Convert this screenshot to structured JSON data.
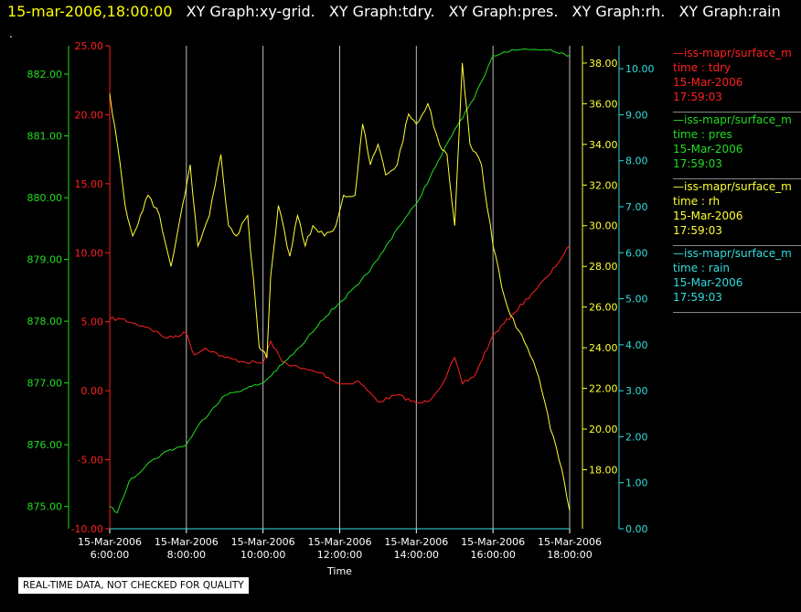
{
  "header": {
    "timestamp": "15-mar-2006,18:00:00",
    "graphs": [
      "XY Graph:xy-grid.",
      "XY Graph:tdry.",
      "XY Graph:pres.",
      "XY Graph:rh.",
      "XY Graph:rain"
    ]
  },
  "dot": ".",
  "disclaimer": "REAL-TIME DATA, NOT CHECKED FOR QUALITY",
  "colors": {
    "tdry": "#ff2020",
    "pres": "#22dd22",
    "rh": "#ffff33",
    "rain": "#33dddd",
    "grid": "#bbbbbb"
  },
  "chart_data": {
    "type": "line",
    "xlabel": "Time",
    "x_ticks": [
      {
        "date": "15-Mar-2006",
        "time": "6:00:00"
      },
      {
        "date": "15-Mar-2006",
        "time": "8:00:00"
      },
      {
        "date": "15-Mar-2006",
        "time": "10:00:00"
      },
      {
        "date": "15-Mar-2006",
        "time": "12:00:00"
      },
      {
        "date": "15-Mar-2006",
        "time": "14:00:00"
      },
      {
        "date": "15-Mar-2006",
        "time": "16:00:00"
      },
      {
        "date": "15-Mar-2006",
        "time": "18:00:00"
      }
    ],
    "xlim": [
      6,
      18
    ],
    "axes": {
      "tdry": {
        "ylim": [
          -10,
          25
        ],
        "ticks": [
          "-10.00",
          "-5.00",
          "0.00",
          "5.00",
          "10.00",
          "15.00",
          "20.00",
          "25.00"
        ]
      },
      "pres": {
        "ylim": [
          874.64,
          882.46
        ],
        "ticks": [
          "875.00",
          "876.00",
          "877.00",
          "878.00",
          "879.00",
          "880.00",
          "881.00",
          "882.00"
        ]
      },
      "rh": {
        "ylim": [
          15.1,
          38.85
        ],
        "ticks": [
          "18.00",
          "20.00",
          "22.00",
          "24.00",
          "26.00",
          "28.00",
          "30.00",
          "32.00",
          "34.00",
          "36.00",
          "38.00"
        ]
      },
      "rain": {
        "ylim": [
          0,
          10.5
        ],
        "ticks": [
          "0.00",
          "1.00",
          "2.00",
          "3.00",
          "4.00",
          "5.00",
          "6.00",
          "7.00",
          "8.00",
          "9.00",
          "10.00"
        ]
      }
    },
    "series": [
      {
        "key": "tdry",
        "x": [
          6,
          6.3,
          6.6,
          7,
          7.5,
          8,
          8.2,
          8.5,
          9,
          9.5,
          10,
          10.2,
          10.5,
          11,
          11.5,
          12,
          12.2,
          12.5,
          13,
          13.5,
          14,
          14.3,
          14.7,
          15,
          15.2,
          15.5,
          16,
          16.5,
          17,
          17.5,
          18
        ],
        "y": [
          5.2,
          5.2,
          4.9,
          4.6,
          3.8,
          4.2,
          2.6,
          3.1,
          2.4,
          2.1,
          2.0,
          3.6,
          2.1,
          1.6,
          1.3,
          0.5,
          0.5,
          0.7,
          -0.8,
          -0.3,
          -0.9,
          -0.8,
          0.6,
          2.4,
          0.5,
          1.0,
          4.0,
          5.5,
          7.0,
          8.5,
          10.5
        ]
      },
      {
        "key": "pres",
        "x": [
          6,
          6.2,
          6.5,
          7,
          7.5,
          8,
          8.3,
          8.7,
          9,
          9.5,
          10,
          10.5,
          11,
          11.5,
          12,
          12.5,
          13,
          13.5,
          14,
          14.5,
          15,
          15.5,
          15.8,
          16,
          16.5,
          17,
          17.5,
          18
        ],
        "y": [
          875.0,
          874.9,
          875.4,
          875.7,
          875.9,
          876.0,
          876.3,
          876.6,
          876.8,
          876.9,
          877.0,
          877.3,
          877.6,
          878.0,
          878.3,
          878.6,
          879.0,
          879.5,
          879.9,
          880.5,
          881.1,
          881.6,
          882.0,
          882.3,
          882.4,
          882.4,
          882.4,
          882.3
        ]
      },
      {
        "key": "rh",
        "x": [
          6,
          6.2,
          6.4,
          6.6,
          6.8,
          7,
          7.3,
          7.6,
          7.9,
          8.1,
          8.3,
          8.6,
          8.9,
          9.1,
          9.3,
          9.6,
          9.9,
          10.1,
          10.2,
          10.4,
          10.7,
          10.9,
          11.1,
          11.3,
          11.6,
          11.9,
          12.1,
          12.4,
          12.6,
          12.8,
          13,
          13.2,
          13.5,
          13.8,
          14,
          14.3,
          14.6,
          14.8,
          15,
          15.2,
          15.4,
          15.7,
          16,
          16.3,
          16.6,
          16.9,
          17.2,
          17.5,
          17.8,
          18
        ],
        "y": [
          36.5,
          34.0,
          31.0,
          29.5,
          30.5,
          31.5,
          30.5,
          28.0,
          31.0,
          33.0,
          29.0,
          30.5,
          33.5,
          30.0,
          29.5,
          30.5,
          24.0,
          23.5,
          27.5,
          31.0,
          28.5,
          30.5,
          29.0,
          30.0,
          29.5,
          30.0,
          31.5,
          31.5,
          35.0,
          33.0,
          34.0,
          32.5,
          33.0,
          35.5,
          35.0,
          36.0,
          34.0,
          33.5,
          30.0,
          38.0,
          34.0,
          33.0,
          29.0,
          26.5,
          25.0,
          24.0,
          22.5,
          20.0,
          18.0,
          16.0
        ]
      },
      {
        "key": "rain",
        "x": [
          6,
          18
        ],
        "y": [
          0.0,
          0.0
        ]
      }
    ]
  },
  "legend": [
    {
      "key": "tdry",
      "lines": [
        "—iss-mapr/surface_m",
        "time : tdry",
        "15-Mar-2006",
        "17:59:03"
      ]
    },
    {
      "key": "pres",
      "lines": [
        "—iss-mapr/surface_m",
        "time : pres",
        "15-Mar-2006",
        "17:59:03"
      ]
    },
    {
      "key": "rh",
      "lines": [
        "—iss-mapr/surface_m",
        "time : rh",
        "15-Mar-2006",
        "17:59:03"
      ]
    },
    {
      "key": "rain",
      "lines": [
        "—iss-mapr/surface_m",
        "time : rain",
        "15-Mar-2006",
        "17:59:03"
      ]
    }
  ]
}
